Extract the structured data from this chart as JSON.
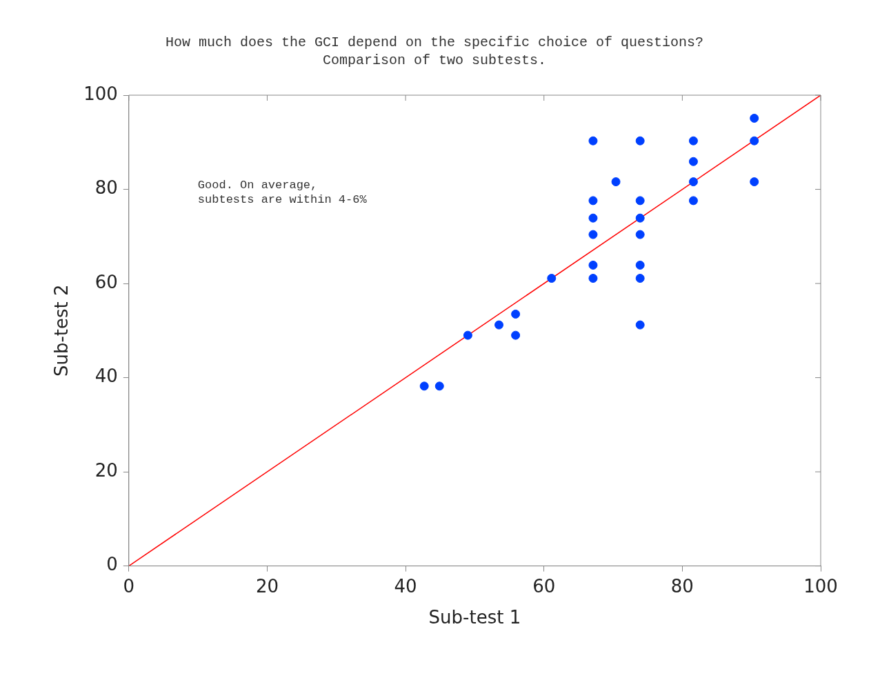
{
  "chart_data": {
    "type": "scatter",
    "title": "How much does the GCI depend on the specific choice of questions?",
    "subtitle": "Comparison of two subtests.",
    "xlabel": "Sub-test 1",
    "ylabel": "Sub-test 2",
    "xlim": [
      0,
      100
    ],
    "ylim": [
      0,
      100
    ],
    "xticks": [
      0,
      20,
      40,
      60,
      80,
      100
    ],
    "yticks": [
      0,
      20,
      40,
      60,
      80,
      100
    ],
    "grid": false,
    "legend": false,
    "marker": "circle",
    "annotations": [
      "Good. On average,\nsubtests are within 4-6%"
    ],
    "series": [
      {
        "type": "scatter",
        "color": "#0040ff",
        "x": [
          42.7,
          44.9,
          49.0,
          53.5,
          55.9,
          55.9,
          61.1,
          67.1,
          67.1,
          67.1,
          67.1,
          67.1,
          67.1,
          70.4,
          73.9,
          73.9,
          73.9,
          73.9,
          73.9,
          73.9,
          73.9,
          81.6,
          81.6,
          81.6,
          81.6,
          90.4,
          90.4,
          90.4
        ],
        "values": [
          38.2,
          38.2,
          49.0,
          51.2,
          53.5,
          49.0,
          61.1,
          90.3,
          77.6,
          73.9,
          70.4,
          63.9,
          61.1,
          81.6,
          90.3,
          77.6,
          73.9,
          70.4,
          63.9,
          61.1,
          51.2,
          90.3,
          85.9,
          81.6,
          77.6,
          95.1,
          90.3,
          81.6
        ]
      },
      {
        "type": "line",
        "color": "#ff0000",
        "marker": "none",
        "x": [
          0,
          100
        ],
        "values": [
          0,
          100
        ]
      }
    ]
  }
}
